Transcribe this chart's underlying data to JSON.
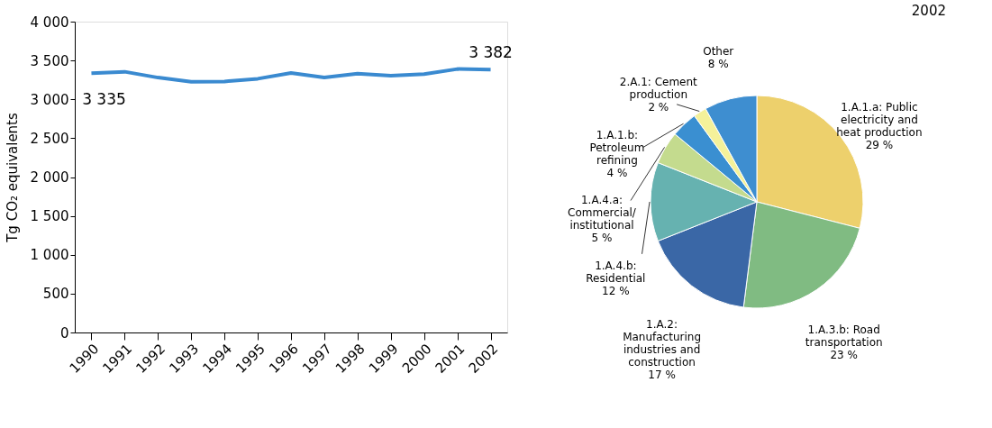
{
  "chart_data": [
    {
      "type": "line",
      "ylabel": "Tg CO₂ equivalents",
      "categories": [
        "1990",
        "1991",
        "1992",
        "1993",
        "1994",
        "1995",
        "1996",
        "1997",
        "1998",
        "1999",
        "2000",
        "2001",
        "2002"
      ],
      "series": [
        {
          "color": "#3a8ad0",
          "values": [
            3335,
            3355,
            3280,
            3225,
            3230,
            3265,
            3340,
            3280,
            3330,
            3305,
            3325,
            3390,
            3382
          ]
        }
      ],
      "ylim": [
        0,
        4000
      ],
      "yticks": [
        {
          "value": 0,
          "label": "0"
        },
        {
          "value": 500,
          "label": "500"
        },
        {
          "value": 1000,
          "label": "1 000"
        },
        {
          "value": 1500,
          "label": "1 500"
        },
        {
          "value": 2000,
          "label": "2 000"
        },
        {
          "value": 2500,
          "label": "2 500"
        },
        {
          "value": 3000,
          "label": "3 000"
        },
        {
          "value": 3500,
          "label": "3 500"
        },
        {
          "value": 4000,
          "label": "4 000"
        }
      ],
      "grid": false,
      "legend": false,
      "marker": "none",
      "line_style": "solid",
      "annotations": [
        {
          "text": "3 335",
          "x": "1990",
          "y": 3335
        },
        {
          "text": "3 382",
          "x": "2002",
          "y": 3382
        }
      ]
    },
    {
      "type": "pie",
      "title": "2002",
      "categories": [
        "1.A.1.a: Public electricity and heat production",
        "1.A.3.b: Road transportation",
        "1.A.2: Manufacturing industries and construction",
        "1.A.4.b: Residential",
        "1.A.4.a: Commercial/ institutional",
        "1.A.1.b: Petroleum refining",
        "2.A.1: Cement production",
        "Other"
      ],
      "values": [
        29,
        23,
        17,
        12,
        5,
        4,
        2,
        8
      ],
      "value_labels": [
        "29 %",
        "23 %",
        "17 %",
        "12 %",
        "5 %",
        "4 %",
        "2 %",
        "8 %"
      ],
      "colors": [
        "#edd06c",
        "#80bb82",
        "#3a67a6",
        "#66b2b0",
        "#c4db8e",
        "#3a8fd1",
        "#f4f19a",
        "#3e8ed0"
      ],
      "legend": false
    }
  ]
}
